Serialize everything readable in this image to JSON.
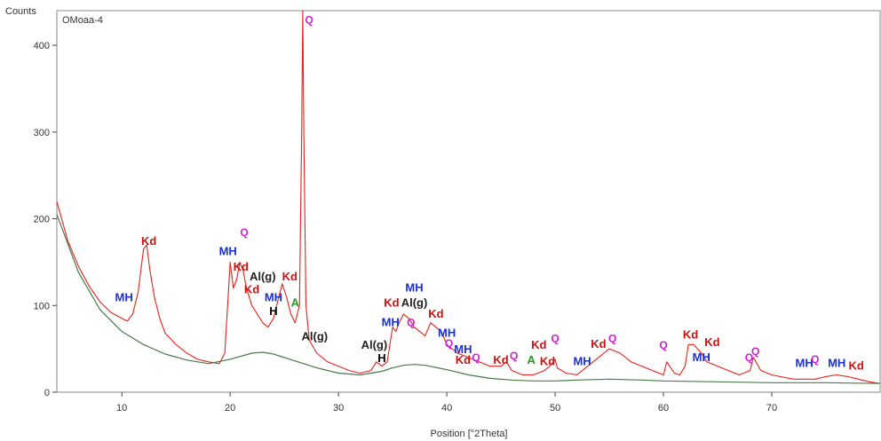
{
  "chart_data": {
    "type": "line",
    "sample_label": "OMoaa-4",
    "xlabel": "Position [°2Theta]",
    "ylabel": "Counts",
    "xlim": [
      4,
      80
    ],
    "ylim": [
      0,
      440
    ],
    "x_ticks": [
      10,
      20,
      30,
      40,
      50,
      60,
      70
    ],
    "y_ticks": [
      0,
      100,
      200,
      300,
      400
    ],
    "grid": false,
    "colors": {
      "pattern": "#e8201a",
      "background": "#4a7a4a",
      "Kd": "#cc1111",
      "MH": "#1a2fd6",
      "Q": "#d020d0",
      "Al(g)": "#222222",
      "H": "#000000",
      "A": "#1e9a1e"
    },
    "series": [
      {
        "role": "pattern",
        "x": [
          4,
          5,
          6,
          7,
          8,
          9,
          10,
          10.5,
          11,
          11.5,
          12,
          12.3,
          12.6,
          13,
          13.5,
          14,
          15,
          16,
          17,
          18,
          19,
          19.5,
          20,
          20.3,
          20.6,
          20.9,
          21.2,
          21.5,
          22,
          22.5,
          23,
          23.5,
          24,
          24.5,
          24.8,
          25.2,
          25.6,
          26,
          26.4,
          26.6,
          26.7,
          26.8,
          27,
          27.3,
          28,
          29,
          30,
          31,
          32,
          33,
          33.5,
          34,
          34.5,
          35,
          35.3,
          35.6,
          36,
          36.5,
          37,
          37.5,
          38,
          38.5,
          39,
          39.5,
          40,
          41,
          42,
          43,
          44,
          45,
          45.5,
          46,
          47,
          48,
          49,
          49.5,
          50,
          50.2,
          51,
          52,
          53,
          54,
          54.5,
          55,
          56,
          57,
          58,
          59,
          60,
          60.3,
          61,
          61.5,
          62,
          62.3,
          62.8,
          63.5,
          64,
          65,
          66,
          67,
          68,
          68.3,
          69,
          70,
          72,
          74,
          75,
          76,
          77,
          78,
          79,
          80
        ],
        "y": [
          220,
          175,
          145,
          122,
          104,
          92,
          85,
          82,
          90,
          115,
          165,
          170,
          140,
          110,
          85,
          68,
          55,
          45,
          38,
          35,
          33,
          45,
          150,
          120,
          130,
          150,
          140,
          120,
          100,
          90,
          80,
          75,
          85,
          110,
          125,
          110,
          90,
          80,
          100,
          300,
          440,
          300,
          100,
          60,
          45,
          35,
          30,
          25,
          22,
          25,
          35,
          30,
          35,
          75,
          70,
          80,
          90,
          85,
          75,
          70,
          65,
          80,
          75,
          70,
          55,
          45,
          40,
          35,
          30,
          30,
          35,
          25,
          20,
          20,
          25,
          30,
          38,
          28,
          22,
          20,
          30,
          40,
          45,
          50,
          45,
          35,
          30,
          25,
          20,
          35,
          22,
          20,
          30,
          55,
          55,
          45,
          35,
          30,
          25,
          20,
          25,
          40,
          25,
          20,
          15,
          15,
          18,
          20,
          18,
          15,
          12,
          10
        ]
      },
      {
        "role": "background",
        "x": [
          4,
          6,
          8,
          10,
          12,
          14,
          16,
          18,
          20,
          22,
          23,
          24,
          26,
          28,
          30,
          32,
          34,
          35,
          36,
          37,
          38,
          40,
          42,
          44,
          46,
          48,
          50,
          52,
          55,
          58,
          60,
          65,
          70,
          75,
          80
        ],
        "y": [
          205,
          138,
          95,
          70,
          55,
          44,
          37,
          33,
          38,
          45,
          46,
          44,
          36,
          28,
          22,
          20,
          24,
          28,
          31,
          32,
          31,
          26,
          20,
          16,
          14,
          13,
          13,
          14,
          15,
          14,
          13,
          12,
          11,
          11,
          10
        ]
      }
    ],
    "annotations": [
      {
        "text": "MH",
        "x": 10.2,
        "y": 105,
        "phase": "MH"
      },
      {
        "text": "Kd",
        "x": 12.5,
        "y": 170,
        "phase": "Kd"
      },
      {
        "text": "MH",
        "x": 19.8,
        "y": 158,
        "phase": "MH"
      },
      {
        "text": "Q",
        "x": 21.3,
        "y": 180,
        "phase": "Q"
      },
      {
        "text": "Kd",
        "x": 21.0,
        "y": 140,
        "phase": "Kd"
      },
      {
        "text": "Al(g)",
        "x": 23.0,
        "y": 129,
        "phase": "Al(g)"
      },
      {
        "text": "Kd",
        "x": 22.0,
        "y": 114,
        "phase": "Kd"
      },
      {
        "text": "Kd",
        "x": 25.5,
        "y": 129,
        "phase": "Kd"
      },
      {
        "text": "MH",
        "x": 24.0,
        "y": 105,
        "phase": "MH"
      },
      {
        "text": "H",
        "x": 24.0,
        "y": 89,
        "phase": "H"
      },
      {
        "text": "A",
        "x": 26.0,
        "y": 99,
        "phase": "A"
      },
      {
        "text": "Q",
        "x": 27.3,
        "y": 425,
        "phase": "Q"
      },
      {
        "text": "Al(g)",
        "x": 27.8,
        "y": 60,
        "phase": "Al(g)"
      },
      {
        "text": "Al(g)",
        "x": 33.3,
        "y": 50,
        "phase": "Al(g)"
      },
      {
        "text": "H",
        "x": 34.0,
        "y": 35,
        "phase": "H"
      },
      {
        "text": "Kd",
        "x": 34.9,
        "y": 99,
        "phase": "Kd"
      },
      {
        "text": "MH",
        "x": 37.0,
        "y": 116,
        "phase": "MH"
      },
      {
        "text": "Al(g)",
        "x": 37.0,
        "y": 99,
        "phase": "Al(g)"
      },
      {
        "text": "MH",
        "x": 34.8,
        "y": 76,
        "phase": "MH"
      },
      {
        "text": "Q",
        "x": 36.7,
        "y": 76,
        "phase": "Q"
      },
      {
        "text": "Kd",
        "x": 39.0,
        "y": 86,
        "phase": "Kd"
      },
      {
        "text": "MH",
        "x": 40.0,
        "y": 64,
        "phase": "MH"
      },
      {
        "text": "Q",
        "x": 40.2,
        "y": 52,
        "phase": "Q"
      },
      {
        "text": "MH",
        "x": 41.5,
        "y": 45,
        "phase": "MH"
      },
      {
        "text": "Kd",
        "x": 41.5,
        "y": 33,
        "phase": "Kd"
      },
      {
        "text": "Q",
        "x": 42.7,
        "y": 36,
        "phase": "Q"
      },
      {
        "text": "Kd",
        "x": 45.0,
        "y": 33,
        "phase": "Kd"
      },
      {
        "text": "Q",
        "x": 46.2,
        "y": 38,
        "phase": "Q"
      },
      {
        "text": "Kd",
        "x": 48.5,
        "y": 50,
        "phase": "Kd"
      },
      {
        "text": "A",
        "x": 47.8,
        "y": 33,
        "phase": "A"
      },
      {
        "text": "Kd",
        "x": 49.3,
        "y": 31,
        "phase": "Kd"
      },
      {
        "text": "Q",
        "x": 50.0,
        "y": 58,
        "phase": "Q"
      },
      {
        "text": "Kd",
        "x": 54.0,
        "y": 51,
        "phase": "Kd"
      },
      {
        "text": "Q",
        "x": 55.3,
        "y": 58,
        "phase": "Q"
      },
      {
        "text": "MH",
        "x": 52.5,
        "y": 31,
        "phase": "MH"
      },
      {
        "text": "Q",
        "x": 60.0,
        "y": 50,
        "phase": "Q"
      },
      {
        "text": "Kd",
        "x": 62.5,
        "y": 62,
        "phase": "Kd"
      },
      {
        "text": "Kd",
        "x": 64.5,
        "y": 53,
        "phase": "Kd"
      },
      {
        "text": "MH",
        "x": 63.5,
        "y": 36,
        "phase": "MH"
      },
      {
        "text": "Q",
        "x": 67.9,
        "y": 36,
        "phase": "Q"
      },
      {
        "text": "Q",
        "x": 68.5,
        "y": 43,
        "phase": "Q"
      },
      {
        "text": "MH",
        "x": 73.0,
        "y": 29,
        "phase": "MH"
      },
      {
        "text": "Q",
        "x": 74.0,
        "y": 34,
        "phase": "Q"
      },
      {
        "text": "MH",
        "x": 76.0,
        "y": 29,
        "phase": "MH"
      },
      {
        "text": "Kd",
        "x": 77.8,
        "y": 26,
        "phase": "Kd"
      }
    ]
  }
}
